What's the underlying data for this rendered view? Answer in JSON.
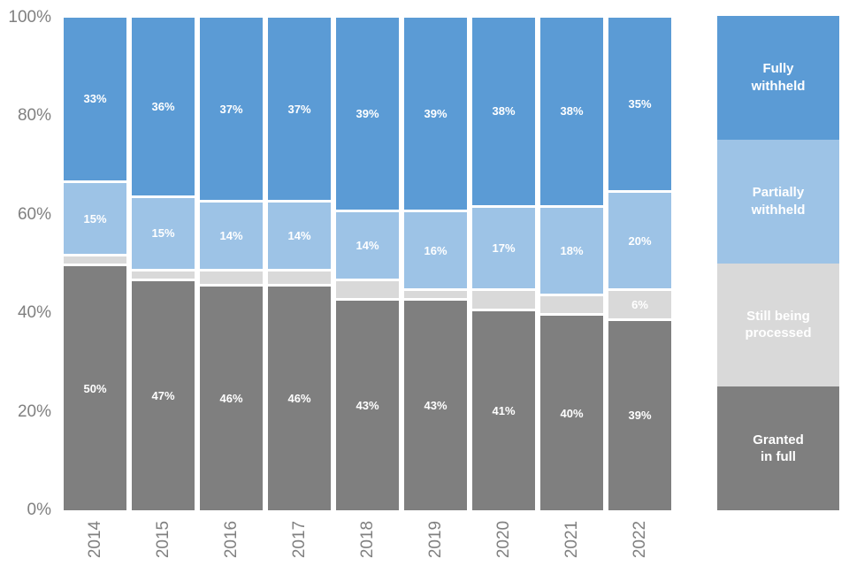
{
  "chart_data": {
    "type": "bar",
    "stacked": true,
    "orientation": "vertical",
    "title": "",
    "xlabel": "",
    "ylabel": "",
    "grid": false,
    "categories": [
      "2014",
      "2015",
      "2016",
      "2017",
      "2018",
      "2019",
      "2020",
      "2021",
      "2022"
    ],
    "series": [
      {
        "name": "Fully withheld",
        "color": "#5B9BD5",
        "values": [
          33,
          36,
          37,
          37,
          39,
          39,
          38,
          38,
          35
        ],
        "labels": [
          "33%",
          "36%",
          "37%",
          "37%",
          "39%",
          "39%",
          "38%",
          "38%",
          "35%"
        ]
      },
      {
        "name": "Partially withheld",
        "color": "#9DC3E6",
        "values": [
          15,
          15,
          14,
          14,
          14,
          16,
          17,
          18,
          20
        ],
        "labels": [
          "15%",
          "15%",
          "14%",
          "14%",
          "14%",
          "16%",
          "17%",
          "18%",
          "20%"
        ]
      },
      {
        "name": "Still being processed",
        "color": "#D9D9D9",
        "values": [
          2,
          2,
          3,
          3,
          4,
          2,
          4,
          4,
          6
        ],
        "labels": [
          "",
          "",
          "",
          "",
          "",
          "",
          "",
          "",
          "6%"
        ]
      },
      {
        "name": "Granted in full",
        "color": "#7F7F7F",
        "values": [
          50,
          47,
          46,
          46,
          43,
          43,
          41,
          40,
          39
        ],
        "labels": [
          "50%",
          "47%",
          "46%",
          "46%",
          "43%",
          "43%",
          "41%",
          "40%",
          "39%"
        ]
      }
    ],
    "y_axis": {
      "min": 0,
      "max": 100,
      "tick_labels": [
        "0%",
        "20%",
        "40%",
        "60%",
        "80%",
        "100%"
      ],
      "tick_values": [
        0,
        20,
        40,
        60,
        80,
        100
      ]
    },
    "legend": {
      "position": "right",
      "items": [
        {
          "label": "Fully\nwithheld",
          "color": "#5B9BD5"
        },
        {
          "label": "Partially\nwithheld",
          "color": "#9DC3E6"
        },
        {
          "label": "Still being\nprocessed",
          "color": "#D9D9D9"
        },
        {
          "label": "Granted\nin full",
          "color": "#7F7F7F"
        }
      ]
    },
    "colors": {
      "axis_text": "#808080",
      "data_label_text": "#ffffff",
      "separator": "#ffffff",
      "background": "#ffffff"
    }
  }
}
